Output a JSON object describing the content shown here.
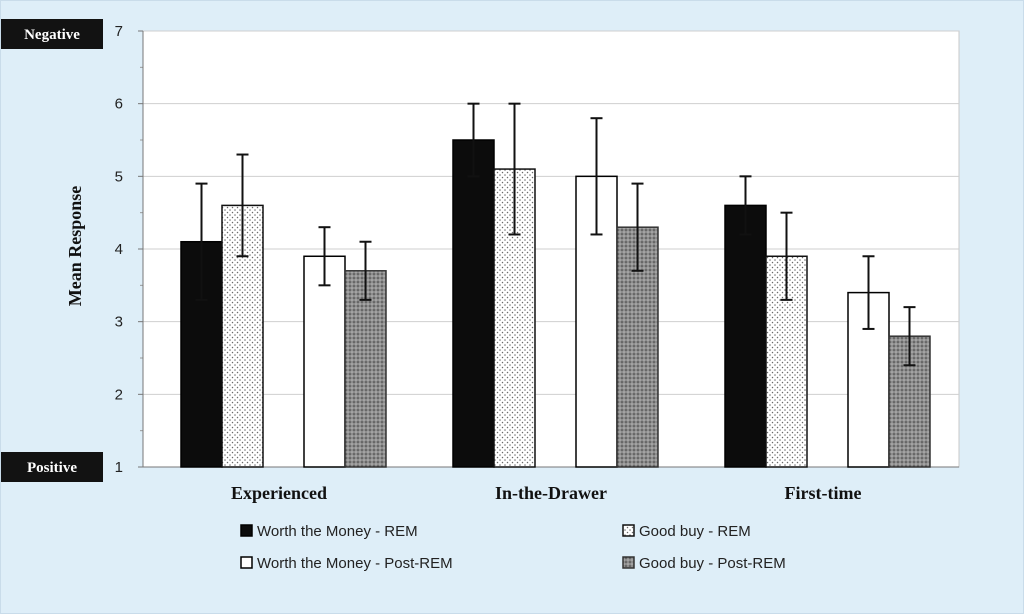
{
  "chart_data": {
    "type": "bar",
    "ylabel": "Mean Response",
    "xlabel": "",
    "ylim": [
      1,
      7
    ],
    "yticks": [
      1,
      2,
      3,
      4,
      5,
      6,
      7
    ],
    "grid": true,
    "legend_position": "bottom",
    "scale_labels": {
      "top": "Negative",
      "bottom": "Positive"
    },
    "categories": [
      "Experienced",
      "In-the-Drawer",
      "First-time"
    ],
    "series": [
      {
        "name": "Worth the Money - REM",
        "fill": "solid-black",
        "values": [
          4.1,
          5.5,
          4.6
        ],
        "err_low": [
          3.3,
          5.0,
          4.2
        ],
        "err_high": [
          4.9,
          6.0,
          5.0
        ]
      },
      {
        "name": "Good buy - REM",
        "fill": "white-dotted",
        "values": [
          4.6,
          5.1,
          3.9
        ],
        "err_low": [
          3.9,
          4.2,
          3.3
        ],
        "err_high": [
          5.3,
          6.0,
          4.5
        ]
      },
      {
        "name": "Worth the Money - Post-REM",
        "fill": "hollow-white",
        "values": [
          3.9,
          5.0,
          3.4
        ],
        "err_low": [
          3.5,
          4.2,
          2.9
        ],
        "err_high": [
          4.3,
          5.8,
          3.9
        ]
      },
      {
        "name": "Good buy - Post-REM",
        "fill": "gray-dotted",
        "values": [
          3.7,
          4.3,
          2.8
        ],
        "err_low": [
          3.3,
          3.7,
          2.4
        ],
        "err_high": [
          4.1,
          4.9,
          3.2
        ]
      }
    ]
  }
}
